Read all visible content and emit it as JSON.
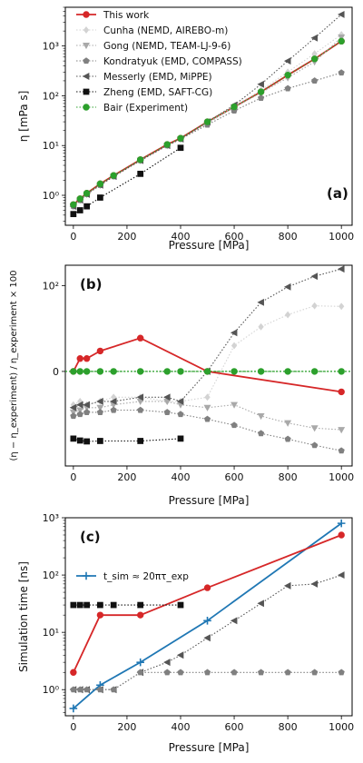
{
  "colors": {
    "this_work": "#d62728",
    "cunha": "#d3d3d3",
    "gong": "#a9a9a9",
    "kondratyuk": "#808080",
    "messerly": "#555555",
    "zheng": "#111111",
    "bair": "#2ca02c",
    "tsim": "#1f77b4"
  },
  "chart_data": [
    {
      "type": "line",
      "panel_label": "(a)",
      "xlabel": "Pressure [MPa]",
      "ylabel": "η [mPa s]",
      "yscale": "log",
      "xlim": [
        -30,
        1040
      ],
      "ylim": [
        0.25,
        6000
      ],
      "xticks": [
        0,
        200,
        400,
        600,
        800,
        1000
      ],
      "yticks": [
        {
          "v": 1,
          "label": "10⁰"
        },
        {
          "v": 10,
          "label": "10¹"
        },
        {
          "v": 100,
          "label": "10²"
        },
        {
          "v": 1000,
          "label": "10³"
        }
      ],
      "legend_position": "top-left",
      "series": [
        {
          "name": "This work",
          "color_key": "this_work",
          "marker": "circle",
          "dash": "solid",
          "x": [
            0,
            25,
            50,
            100,
            150,
            250,
            350,
            400,
            500,
            600,
            700,
            800,
            900,
            1000
          ],
          "y": [
            0.65,
            0.85,
            1.1,
            1.7,
            2.5,
            5.2,
            10.5,
            14,
            30,
            60,
            120,
            260,
            550,
            1250
          ]
        },
        {
          "name": "Cunha (NEMD, AIREBO-m)",
          "color_key": "cunha",
          "marker": "diamond",
          "dash": "dotted",
          "x": [
            0,
            25,
            50,
            100,
            150,
            250,
            350,
            400,
            500,
            600,
            700,
            800,
            900,
            1000
          ],
          "y": [
            0.6,
            0.8,
            1.05,
            1.6,
            2.4,
            5,
            10,
            13.5,
            29,
            62,
            130,
            300,
            700,
            1700
          ]
        },
        {
          "name": "Gong (NEMD, TEAM-LJ-9-6)",
          "color_key": "gong",
          "marker": "triangle-down",
          "dash": "dotted",
          "x": [
            0,
            25,
            50,
            100,
            150,
            250,
            350,
            400,
            500,
            600,
            700,
            800,
            900,
            1000
          ],
          "y": [
            0.6,
            0.8,
            1.05,
            1.6,
            2.4,
            5,
            10,
            13.5,
            28,
            58,
            115,
            230,
            480,
            1500
          ]
        },
        {
          "name": "Kondratyuk (EMD, COMPASS)",
          "color_key": "kondratyuk",
          "marker": "pentagon",
          "dash": "dotted",
          "x": [
            0,
            25,
            50,
            100,
            150,
            250,
            350,
            400,
            500,
            600,
            700,
            800,
            900,
            1000
          ],
          "y": [
            0.6,
            0.8,
            1.05,
            1.6,
            2.4,
            5,
            10,
            13.5,
            26,
            50,
            90,
            140,
            200,
            290
          ]
        },
        {
          "name": "Messerly (EMD, MiPPE)",
          "color_key": "messerly",
          "marker": "triangle-left",
          "dash": "dotted",
          "x": [
            0,
            25,
            50,
            100,
            150,
            250,
            350,
            400,
            500,
            600,
            700,
            800,
            900,
            1000
          ],
          "y": [
            0.6,
            0.8,
            1.05,
            1.6,
            2.4,
            5,
            10,
            13.5,
            30,
            65,
            170,
            500,
            1450,
            4300
          ]
        },
        {
          "name": "Zheng (EMD, SAFT-CG)",
          "color_key": "zheng",
          "marker": "square",
          "dash": "dotted",
          "x": [
            0,
            25,
            50,
            100,
            250,
            400
          ],
          "y": [
            0.42,
            0.5,
            0.6,
            0.9,
            2.7,
            9
          ]
        },
        {
          "name": "Bair (Experiment)",
          "color_key": "bair",
          "marker": "circle",
          "dash": "dotted",
          "x": [
            0,
            25,
            50,
            100,
            150,
            250,
            350,
            400,
            500,
            600,
            700,
            800,
            900,
            1000
          ],
          "y": [
            0.65,
            0.85,
            1.1,
            1.7,
            2.5,
            5.2,
            10.5,
            14,
            30,
            60,
            120,
            260,
            550,
            1250
          ]
        }
      ]
    },
    {
      "type": "line",
      "panel_label": "(b)",
      "xlabel": "Pressure [MPa]",
      "ylabel": "(η − η_experiment) / η_experiment × 100",
      "yscale": "symlog",
      "xlim": [
        -30,
        1040
      ],
      "ylim": [
        -160,
        300
      ],
      "xticks": [
        0,
        200,
        400,
        600,
        800,
        1000
      ],
      "yticks": [
        {
          "v": 0,
          "label": "0"
        },
        {
          "v": 100,
          "label": "10²"
        }
      ],
      "series": [
        {
          "color_key": "this_work",
          "marker": "circle",
          "dash": "solid",
          "x": [
            0,
            25,
            50,
            100,
            250,
            500,
            1000
          ],
          "y": [
            0,
            1,
            1,
            2,
            5,
            0,
            -2
          ]
        },
        {
          "color_key": "cunha",
          "marker": "diamond",
          "dash": "dotted",
          "x": [
            0,
            25,
            50,
            100,
            150,
            250,
            350,
            400,
            500,
            600,
            700,
            800,
            900,
            1000
          ],
          "y": [
            -5,
            -4,
            -5,
            -4,
            -3,
            -3,
            -4,
            -4,
            -3,
            3,
            10,
            20,
            33,
            32
          ]
        },
        {
          "color_key": "gong",
          "marker": "triangle-down",
          "dash": "dotted",
          "x": [
            0,
            25,
            50,
            100,
            150,
            250,
            350,
            400,
            500,
            600,
            700,
            800,
            900,
            1000
          ],
          "y": [
            -8,
            -7,
            -6,
            -6,
            -5,
            -4,
            -4,
            -5,
            -6,
            -5,
            -10,
            -15,
            -20,
            -22
          ]
        },
        {
          "color_key": "kondratyuk",
          "marker": "pentagon",
          "dash": "dotted",
          "x": [
            0,
            25,
            50,
            100,
            150,
            250,
            350,
            400,
            500,
            600,
            700,
            800,
            900,
            1000
          ],
          "y": [
            -10,
            -9,
            -8,
            -8,
            -7,
            -7,
            -8,
            -9,
            -12,
            -17,
            -27,
            -37,
            -52,
            -70
          ]
        },
        {
          "color_key": "messerly",
          "marker": "triangle-left",
          "dash": "dotted",
          "x": [
            0,
            25,
            50,
            100,
            150,
            250,
            350,
            400,
            500,
            600,
            700,
            800,
            900,
            1000
          ],
          "y": [
            -6,
            -5,
            -5,
            -4,
            -4,
            -3,
            -3,
            -4,
            0,
            7,
            40,
            93,
            165,
            245
          ]
        },
        {
          "color_key": "zheng",
          "marker": "square",
          "dash": "dotted",
          "x": [
            0,
            25,
            50,
            100,
            250,
            400
          ],
          "y": [
            -36,
            -40,
            -42,
            -41,
            -41,
            -36
          ]
        },
        {
          "color_key": "bair",
          "marker": "circle",
          "dash": "dotted",
          "x": [
            0,
            25,
            50,
            100,
            150,
            250,
            350,
            400,
            500,
            600,
            700,
            800,
            900,
            1000
          ],
          "y": [
            0,
            0,
            0,
            0,
            0,
            0,
            0,
            0,
            0,
            0,
            0,
            0,
            0,
            0
          ]
        }
      ]
    },
    {
      "type": "line",
      "panel_label": "(c)",
      "xlabel": "Pressure [MPa]",
      "ylabel": "Simulation time [ns]",
      "yscale": "log",
      "xlim": [
        -30,
        1040
      ],
      "ylim": [
        0.35,
        1000
      ],
      "xticks": [
        0,
        200,
        400,
        600,
        800,
        1000
      ],
      "yticks": [
        {
          "v": 1,
          "label": "10⁰"
        },
        {
          "v": 10,
          "label": "10¹"
        },
        {
          "v": 100,
          "label": "10²"
        },
        {
          "v": 1000,
          "label": "10³"
        }
      ],
      "legend_position": "upper-left",
      "series": [
        {
          "name": "t_sim ≈ 20πτ_exp",
          "color_key": "tsim",
          "marker": "plus",
          "dash": "solid",
          "x": [
            0,
            100,
            250,
            500,
            1000
          ],
          "y": [
            0.47,
            1.2,
            3,
            16,
            800
          ]
        },
        {
          "color_key": "this_work",
          "marker": "circle",
          "dash": "solid",
          "x": [
            0,
            100,
            250,
            500,
            1000
          ],
          "y": [
            2,
            20,
            20,
            60,
            500
          ]
        },
        {
          "color_key": "zheng",
          "marker": "square",
          "dash": "dotted",
          "x": [
            0,
            25,
            50,
            100,
            150,
            250,
            400
          ],
          "y": [
            30,
            30,
            30,
            30,
            30,
            30,
            30
          ]
        },
        {
          "color_key": "messerly",
          "marker": "triangle-left",
          "dash": "dotted",
          "x": [
            0,
            25,
            50,
            100,
            150,
            250,
            350,
            400,
            500,
            600,
            700,
            800,
            900,
            1000
          ],
          "y": [
            1,
            1,
            1,
            1,
            1,
            2,
            3,
            4,
            8,
            16,
            32,
            65,
            70,
            100
          ]
        },
        {
          "color_key": "kondratyuk",
          "marker": "pentagon",
          "dash": "dotted",
          "x": [
            0,
            25,
            50,
            100,
            150,
            250,
            350,
            400,
            500,
            600,
            700,
            800,
            900,
            1000
          ],
          "y": [
            1,
            1,
            1,
            1,
            1,
            2,
            2,
            2,
            2,
            2,
            2,
            2,
            2,
            2
          ]
        }
      ]
    }
  ]
}
